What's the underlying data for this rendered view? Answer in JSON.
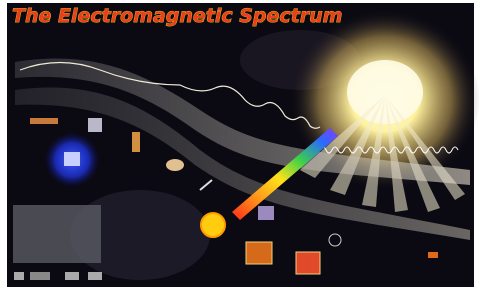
{
  "title": "The Electromagnetic Spectrum"
}
